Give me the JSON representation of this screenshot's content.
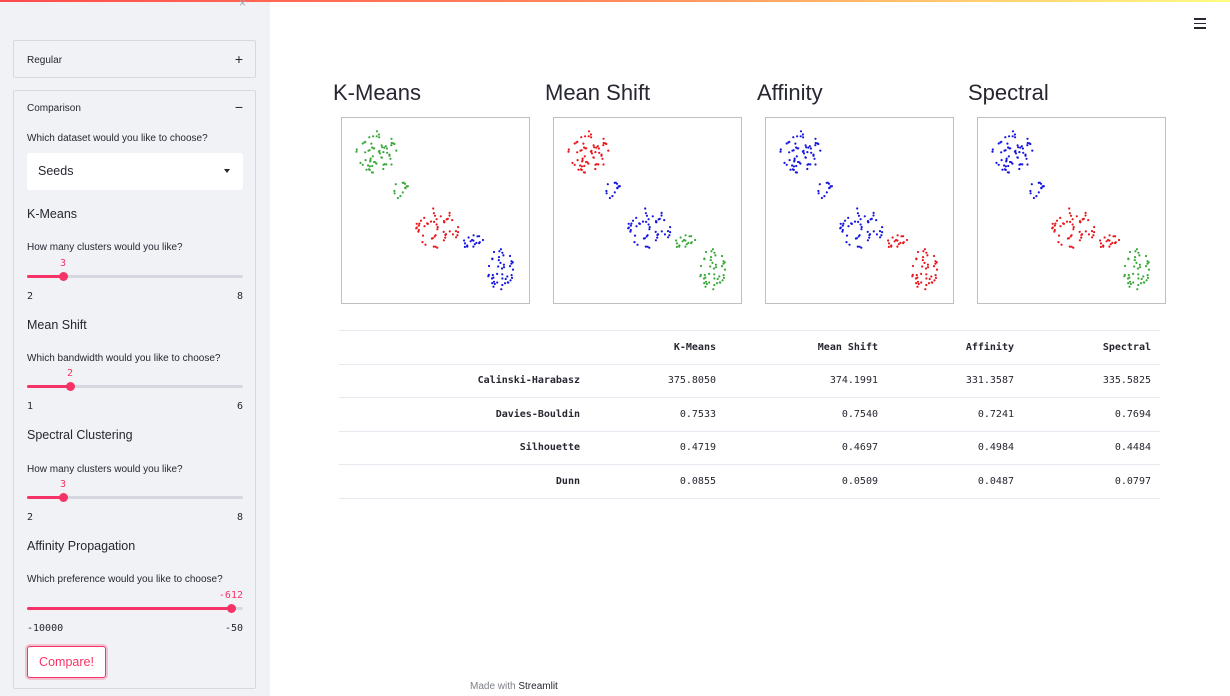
{
  "sidebar": {
    "close_glyph": "×",
    "regular": {
      "label": "Regular",
      "toggle": "+"
    },
    "comparison": {
      "label": "Comparison",
      "toggle": "−",
      "dataset_question": "Which dataset would you like to choose?",
      "dataset_value": "Seeds",
      "kmeans": {
        "title": "K-Means",
        "question": "How many clusters would you like?",
        "value": "3",
        "min": "2",
        "max": "8",
        "fraction": 0.1667
      },
      "meanshift": {
        "title": "Mean Shift",
        "question": "Which bandwidth would you like to choose?",
        "value": "2",
        "min": "1",
        "max": "6",
        "fraction": 0.2
      },
      "spectral": {
        "title": "Spectral Clustering",
        "question": "How many clusters would you like?",
        "value": "3",
        "min": "2",
        "max": "8",
        "fraction": 0.1667
      },
      "affinity": {
        "title": "Affinity Propagation",
        "question": "Which preference would you like to choose?",
        "value": "-612",
        "min": "-10000",
        "max": "-50",
        "fraction": 0.9435
      },
      "compare_label": "Compare!"
    }
  },
  "plots": {
    "titles": [
      "K-Means",
      "Mean Shift",
      "Affinity",
      "Spectral"
    ],
    "colors": {
      "red": "#e8161b",
      "green": "#3aa83a",
      "blue": "#1515e0"
    }
  },
  "table": {
    "columns": [
      "",
      "K-Means",
      "Mean Shift",
      "Affinity",
      "Spectral"
    ],
    "rows": [
      {
        "name": "Calinski-Harabasz",
        "values": [
          "375.8050",
          "374.1991",
          "331.3587",
          "335.5825"
        ]
      },
      {
        "name": "Davies-Bouldin",
        "values": [
          "0.7533",
          "0.7540",
          "0.7241",
          "0.7694"
        ]
      },
      {
        "name": "Silhouette",
        "values": [
          "0.4719",
          "0.4697",
          "0.4984",
          "0.4484"
        ]
      },
      {
        "name": "Dunn",
        "values": [
          "0.0855",
          "0.0509",
          "0.0487",
          "0.0797"
        ]
      }
    ]
  },
  "footer": {
    "prefix": "Made with",
    "brand": "Streamlit"
  },
  "icons": {
    "menu": "hamburger-menu-icon",
    "caret": "caret-down-icon"
  }
}
